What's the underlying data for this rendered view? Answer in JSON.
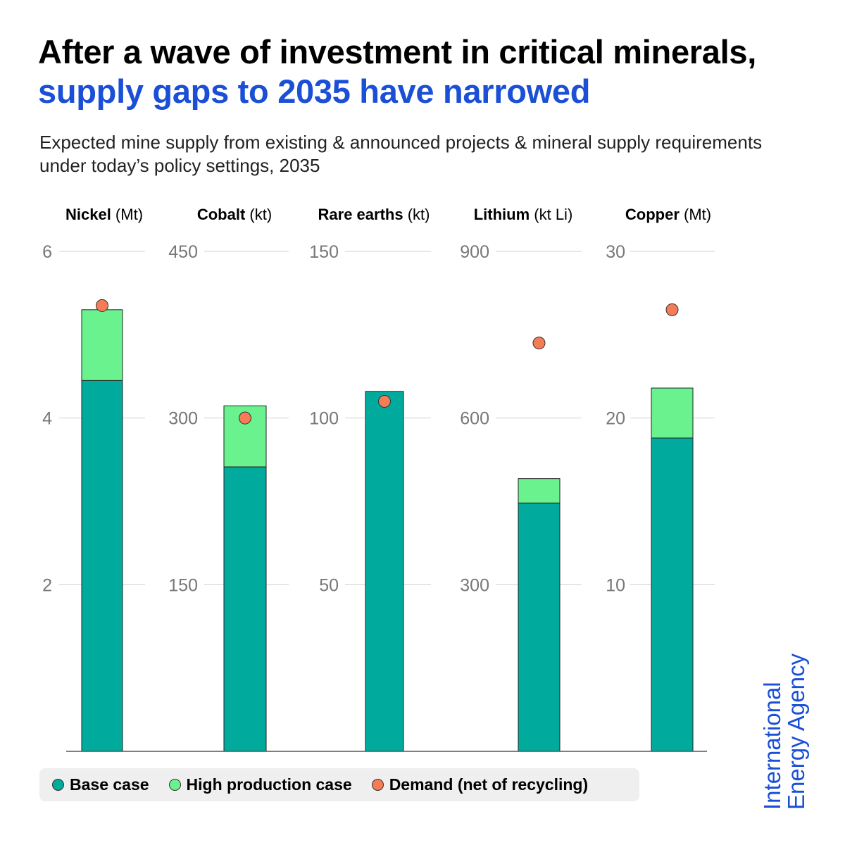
{
  "header": {
    "title_black": "After a wave of investment in critical minerals,",
    "title_blue": "supply gaps to 2035 have narrowed",
    "subtitle": "Expected mine supply from existing & announced projects & mineral supply requirements under today’s policy settings, 2035"
  },
  "colors": {
    "accent": "#1a4fd6",
    "base": "#00ab9e",
    "high": "#6af28f",
    "demand": "#f47c57",
    "grid": "#d0d0d0",
    "tick": "#777777"
  },
  "chart_data": {
    "type": "bar",
    "panels": [
      {
        "mineral": "Nickel",
        "unit": "(Mt)",
        "ymax": 6,
        "ticks": [
          2,
          4,
          6
        ],
        "base": 4.45,
        "high": 5.3,
        "demand": 5.35
      },
      {
        "mineral": "Cobalt",
        "unit": "(kt)",
        "ymax": 450,
        "ticks": [
          150,
          300,
          450
        ],
        "base": 256,
        "high": 311,
        "demand": 300
      },
      {
        "mineral": "Rare earths",
        "unit": "(kt)",
        "ymax": 150,
        "ticks": [
          50,
          100,
          150
        ],
        "base": 108,
        "high": 108,
        "demand": 105
      },
      {
        "mineral": "Lithium",
        "unit": "(kt Li)",
        "ymax": 900,
        "ticks": [
          300,
          600,
          900
        ],
        "base": 447,
        "high": 491,
        "demand": 735
      },
      {
        "mineral": "Copper",
        "unit": "(Mt)",
        "ymax": 30,
        "ticks": [
          10,
          20,
          30
        ],
        "base": 18.8,
        "high": 21.8,
        "demand": 26.5
      }
    ],
    "series": [
      "Base case",
      "High production case",
      "Demand (net of recycling)"
    ]
  },
  "legend": {
    "base_label": "Base case",
    "high_label": "High production case",
    "demand_label": "Demand (net of recycling)"
  },
  "brand": {
    "line1": "International",
    "line2": "Energy Agency"
  }
}
